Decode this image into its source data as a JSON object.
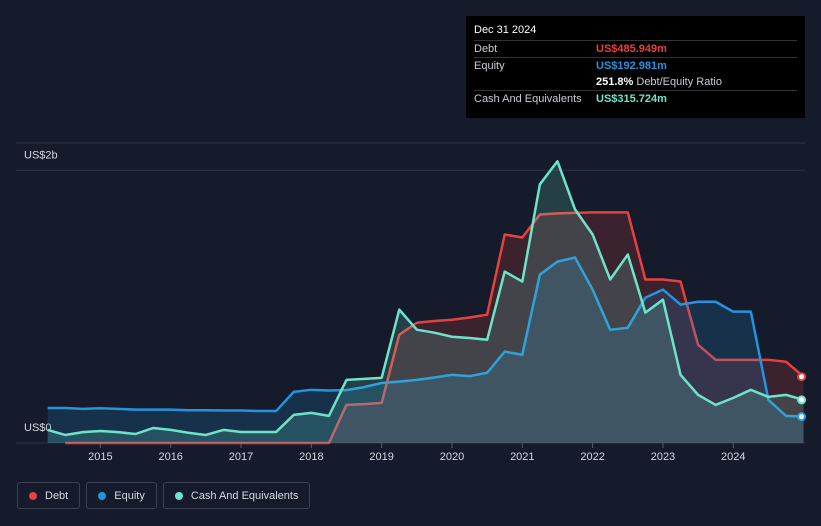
{
  "chart_data": {
    "type": "area",
    "x": [
      2014.25,
      2014.5,
      2014.75,
      2015,
      2015.25,
      2015.5,
      2015.75,
      2016,
      2016.25,
      2016.5,
      2016.75,
      2017,
      2017.25,
      2017.5,
      2017.75,
      2018,
      2018.25,
      2018.5,
      2018.75,
      2019,
      2019.25,
      2019.5,
      2019.75,
      2020,
      2020.25,
      2020.5,
      2020.75,
      2021,
      2021.25,
      2021.5,
      2021.75,
      2022,
      2022.25,
      2022.5,
      2022.75,
      2023,
      2023.25,
      2023.5,
      2023.75,
      2024,
      2024.25,
      2024.5,
      2024.75,
      2025
    ],
    "xlim": [
      2013.8,
      2025.02
    ],
    "xticks": [
      2015,
      2016,
      2017,
      2018,
      2019,
      2020,
      2021,
      2022,
      2023,
      2024
    ],
    "ylim": [
      0,
      2200
    ],
    "yticks": [
      {
        "value": 0,
        "label": "US$0"
      },
      {
        "value": 2000,
        "label": "US$2b"
      }
    ],
    "series": [
      {
        "name": "Debt",
        "color": "#e64141",
        "values": [
          null,
          0,
          0,
          0,
          0,
          0,
          0,
          0,
          0,
          0,
          0,
          0,
          0,
          0,
          0,
          0,
          0,
          280,
          285,
          294,
          794,
          882,
          895,
          904,
          920,
          941,
          1529,
          1507,
          1676,
          1684,
          1688,
          1691,
          1691,
          1691,
          1199,
          1199,
          1184,
          720,
          610,
          610,
          610,
          610,
          596,
          486
        ]
      },
      {
        "name": "Equity",
        "color": "#2394df",
        "values": [
          257,
          257,
          250,
          255,
          250,
          245,
          245,
          245,
          240,
          240,
          238,
          238,
          235,
          235,
          375,
          390,
          385,
          388,
          410,
          440,
          450,
          463,
          480,
          500,
          490,
          515,
          670,
          647,
          1235,
          1330,
          1360,
          1125,
          830,
          845,
          1066,
          1125,
          1015,
          1036,
          1036,
          963,
          963,
          316,
          199,
          193
        ]
      },
      {
        "name": "Cash And Equivalents",
        "color": "#6fe3c9",
        "values": [
          96,
          59,
          80,
          88,
          80,
          66,
          110,
          96,
          75,
          59,
          96,
          81,
          81,
          81,
          206,
          221,
          199,
          463,
          470,
          478,
          978,
          831,
          809,
          779,
          770,
          757,
          1257,
          1184,
          1897,
          2066,
          1713,
          1529,
          1199,
          1382,
          956,
          1051,
          500,
          353,
          279,
          331,
          390,
          338,
          353,
          316
        ]
      }
    ],
    "tooltip": {
      "date": "Dec 31 2024",
      "rows": [
        {
          "label": "Debt",
          "value": "US$485.949m"
        },
        {
          "label": "Equity",
          "value": "US$192.981m"
        },
        {
          "value": "251.8%",
          "label": "Debt/Equity Ratio"
        },
        {
          "label": "Cash And Equivalents",
          "value": "US$315.724m"
        }
      ]
    }
  }
}
